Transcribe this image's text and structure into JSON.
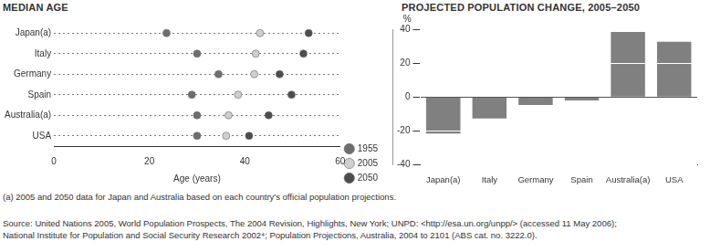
{
  "chart_data": [
    {
      "type": "dot",
      "orientation": "horizontal",
      "title": "MEDIAN AGE",
      "categories": [
        "Japan(a)",
        "Italy",
        "Germany",
        "Spain",
        "Australia(a)",
        "USA"
      ],
      "series": [
        {
          "name": "1955",
          "color": "#6e6e6e",
          "values": [
            23.6,
            30,
            34.5,
            28.9,
            30,
            30
          ]
        },
        {
          "name": "2005",
          "color": "#cfcfcf",
          "values": [
            43.2,
            42.3,
            42,
            38.6,
            36.6,
            36.1
          ]
        },
        {
          "name": "2050",
          "color": "#4d4d4d",
          "values": [
            53.4,
            52.3,
            47.3,
            49.8,
            45,
            40.9
          ]
        }
      ],
      "xlabel": "Age (years)",
      "xlim": [
        0,
        60
      ],
      "xticks": [
        0,
        20,
        40,
        60
      ],
      "grid": true,
      "legend": "right",
      "marker": "circle"
    },
    {
      "type": "bar",
      "title": "PROJECTED POPULATION CHANGE, 2005–2050",
      "ylabel": "%",
      "categories": [
        "Japan(a)",
        "Italy",
        "Germany",
        "Spain",
        "Australia(a)",
        "USA"
      ],
      "values": [
        -21.5,
        -12.6,
        -4.7,
        -2,
        38.4,
        32.6
      ],
      "color": "#808080",
      "ylim": [
        -40,
        40
      ],
      "yticks": [
        -40,
        -20,
        0,
        20,
        40
      ],
      "grid": true
    }
  ],
  "footnote": "(a) 2005 and 2050 data for Japan and Australia based on each country's official population projections.",
  "source": [
    "Source: United Nations 2005, World Population Prospects, The 2004 Revision, Highlights, New York; UNPD: <http://esa.un.org/unpp/> (accessed 11 May 2006);",
    "National Institute for Population and Social Security Research 2002⁴; Population Projections, Australia, 2004 to 2101 (ABS cat. no. 3222.0)."
  ]
}
